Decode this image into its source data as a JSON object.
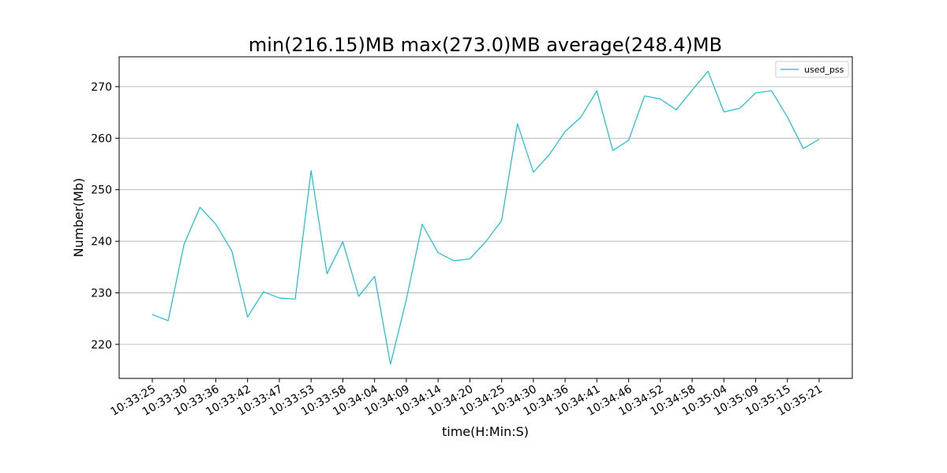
{
  "chart_data": {
    "type": "line",
    "title": "min(216.15)MB max(273.0)MB average(248.4)MB",
    "xlabel": "time(H:Min:S)",
    "ylabel": "Number(Mb)",
    "ylim": [
      213.4,
      275.8
    ],
    "yticks": [
      220,
      230,
      240,
      250,
      260,
      270
    ],
    "grid": "horizontal",
    "legend_position": "top-right",
    "xtick_labels": [
      "10:33:25",
      "10:33:30",
      "10:33:36",
      "10:33:42",
      "10:33:47",
      "10:33:53",
      "10:33:58",
      "10:34:04",
      "10:34:09",
      "10:34:14",
      "10:34:20",
      "10:34:25",
      "10:34:30",
      "10:34:36",
      "10:34:41",
      "10:34:46",
      "10:34:52",
      "10:34:58",
      "10:35:04",
      "10:35:09",
      "10:35:15",
      "10:35:21"
    ],
    "series": [
      {
        "name": "used_pss",
        "color": "#17becf",
        "values": [
          225.8,
          224.6,
          239.4,
          246.6,
          243.3,
          238.2,
          225.3,
          230.2,
          229.0,
          228.8,
          253.7,
          233.7,
          239.9,
          229.3,
          233.2,
          216.15,
          228.7,
          243.3,
          237.8,
          236.2,
          236.6,
          239.9,
          244.0,
          262.8,
          253.4,
          256.8,
          261.3,
          264.1,
          269.2,
          257.6,
          259.6,
          268.2,
          267.6,
          265.5,
          269.3,
          273.0,
          265.1,
          265.8,
          268.8,
          269.2,
          264.1,
          258.0,
          259.8
        ]
      }
    ]
  }
}
